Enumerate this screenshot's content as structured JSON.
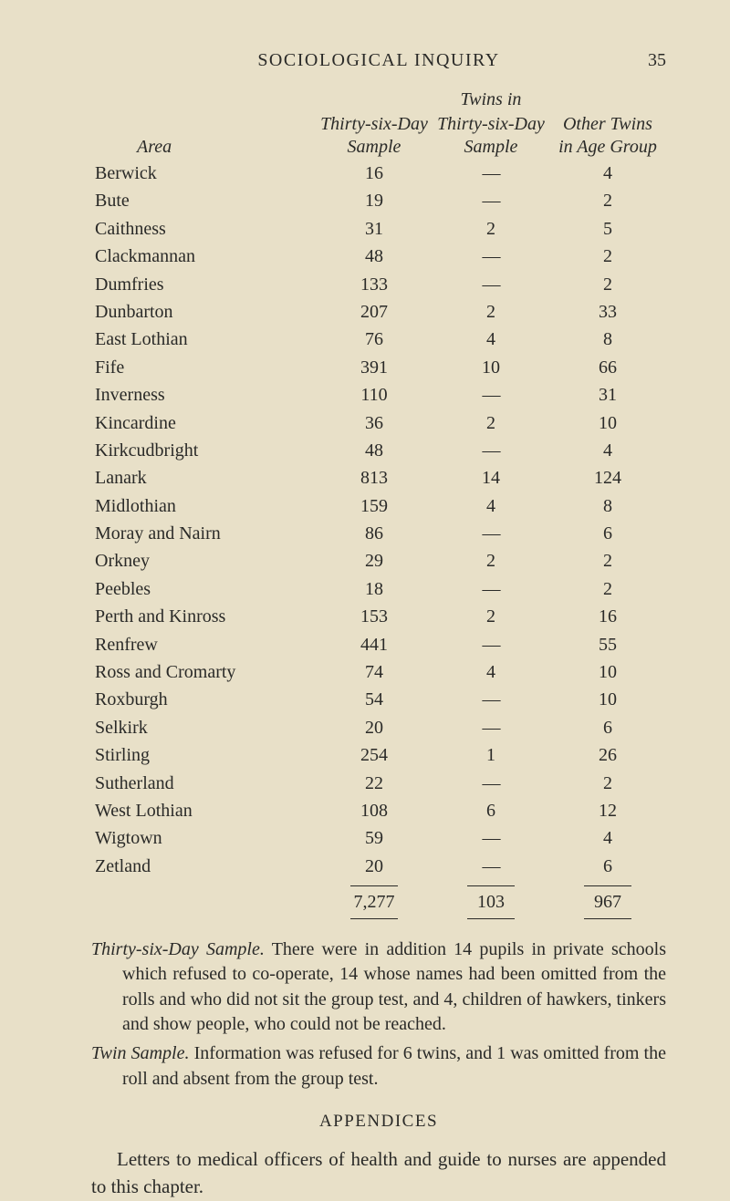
{
  "page": {
    "running_title": "SOCIOLOGICAL INQUIRY",
    "number": "35"
  },
  "table": {
    "headers": {
      "area": "Area",
      "col1_l1": "Thirty-six-Day",
      "col1_l2": "Sample",
      "col2_l1": "Twins in",
      "col2_l2": "Thirty-six-Day",
      "col2_l3": "Sample",
      "col3_l1": "Other Twins",
      "col3_l2": "in Age Group"
    },
    "rows": [
      {
        "area": "Berwick",
        "c1": "16",
        "c2": "—",
        "c3": "4"
      },
      {
        "area": "Bute",
        "c1": "19",
        "c2": "—",
        "c3": "2"
      },
      {
        "area": "Caithness",
        "c1": "31",
        "c2": "2",
        "c3": "5"
      },
      {
        "area": "Clackmannan",
        "c1": "48",
        "c2": "—",
        "c3": "2"
      },
      {
        "area": "Dumfries",
        "c1": "133",
        "c2": "—",
        "c3": "2"
      },
      {
        "area": "Dunbarton",
        "c1": "207",
        "c2": "2",
        "c3": "33"
      },
      {
        "area": "East Lothian",
        "c1": "76",
        "c2": "4",
        "c3": "8"
      },
      {
        "area": "Fife",
        "c1": "391",
        "c2": "10",
        "c3": "66"
      },
      {
        "area": "Inverness",
        "c1": "110",
        "c2": "—",
        "c3": "31"
      },
      {
        "area": "Kincardine",
        "c1": "36",
        "c2": "2",
        "c3": "10"
      },
      {
        "area": "Kirkcudbright",
        "c1": "48",
        "c2": "—",
        "c3": "4"
      },
      {
        "area": "Lanark",
        "c1": "813",
        "c2": "14",
        "c3": "124"
      },
      {
        "area": "Midlothian",
        "c1": "159",
        "c2": "4",
        "c3": "8"
      },
      {
        "area": "Moray and Nairn",
        "c1": "86",
        "c2": "—",
        "c3": "6"
      },
      {
        "area": "Orkney",
        "c1": "29",
        "c2": "2",
        "c3": "2"
      },
      {
        "area": "Peebles",
        "c1": "18",
        "c2": "—",
        "c3": "2"
      },
      {
        "area": "Perth and Kinross",
        "c1": "153",
        "c2": "2",
        "c3": "16"
      },
      {
        "area": "Renfrew",
        "c1": "441",
        "c2": "—",
        "c3": "55"
      },
      {
        "area": "Ross and Cromarty",
        "c1": "74",
        "c2": "4",
        "c3": "10"
      },
      {
        "area": "Roxburgh",
        "c1": "54",
        "c2": "—",
        "c3": "10"
      },
      {
        "area": "Selkirk",
        "c1": "20",
        "c2": "—",
        "c3": "6"
      },
      {
        "area": "Stirling",
        "c1": "254",
        "c2": "1",
        "c3": "26"
      },
      {
        "area": "Sutherland",
        "c1": "22",
        "c2": "—",
        "c3": "2"
      },
      {
        "area": "West Lothian",
        "c1": "108",
        "c2": "6",
        "c3": "12"
      },
      {
        "area": "Wigtown",
        "c1": "59",
        "c2": "—",
        "c3": "4"
      },
      {
        "area": "Zetland",
        "c1": "20",
        "c2": "—",
        "c3": "6"
      }
    ],
    "totals": {
      "c1": "7,277",
      "c2": "103",
      "c3": "967"
    }
  },
  "body": {
    "para1_lead": "Thirty-six-Day Sample.",
    "para1_rest": " There were in addition 14 pupils in private schools which refused to co-operate, 14 whose names had been omitted from the rolls and who did not sit the group test, and 4, children of hawkers, tinkers and show people, who could not be reached.",
    "para2_lead": "Twin Sample.",
    "para2_rest": " Information was refused for 6 twins, and 1 was omitted from the roll and absent from the group test.",
    "appendices": "APPENDICES",
    "final": "Letters to medical officers of health and guide to nurses are appended to this chapter."
  }
}
